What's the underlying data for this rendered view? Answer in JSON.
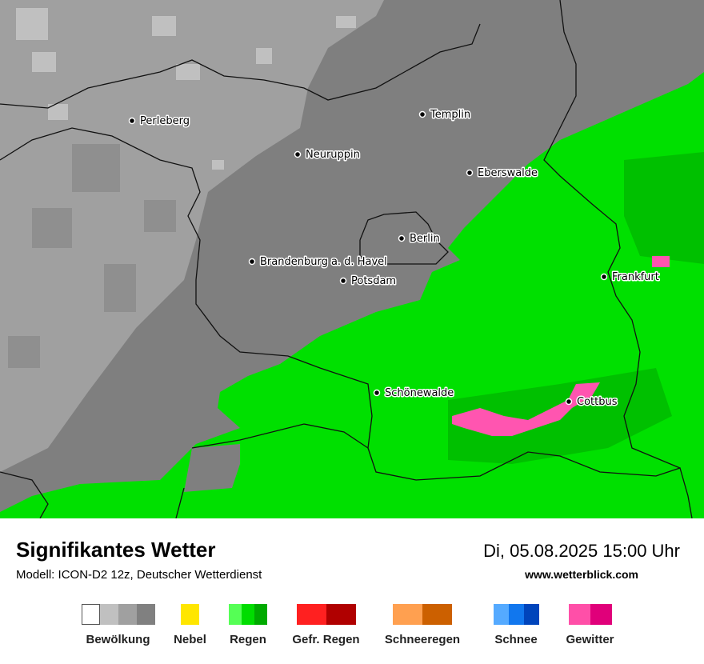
{
  "map": {
    "cities": [
      "Perleberg",
      "Neuruppin",
      "Templin",
      "Eberswalde",
      "Berlin",
      "Brandenburg a. d. Havel",
      "Potsdam",
      "Frankfurt",
      "Schönewalde",
      "Cottbus"
    ]
  },
  "footer": {
    "title": "Signifikantes Wetter",
    "subtitle": "Modell: ICON-D2 12z, Deutscher Wetterdienst",
    "datetime": "Di, 05.08.2025 15:00 Uhr",
    "website": "www.wetterblick.com"
  },
  "legend": [
    "Bewölkung",
    "Nebel",
    "Regen",
    "Gefr. Regen",
    "Schneeregen",
    "Schnee",
    "Gewitter"
  ]
}
